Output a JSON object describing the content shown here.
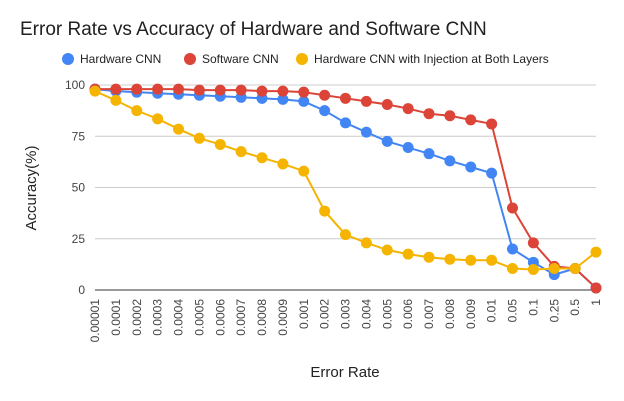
{
  "chart_data": {
    "type": "line",
    "title": "Error Rate vs Accuracy of Hardware and Software CNN",
    "xlabel": "Error Rate",
    "ylabel": "Accuracy(%)",
    "ylim": [
      0,
      100
    ],
    "yticks": [
      "0",
      "25",
      "50",
      "75",
      "100"
    ],
    "grid": true,
    "legend_position": "top",
    "categories": [
      "0.00001",
      "0.0001",
      "0.0002",
      "0.0003",
      "0.0004",
      "0.0005",
      "0.0006",
      "0.0007",
      "0.0008",
      "0.0009",
      "0.001",
      "0.002",
      "0.003",
      "0.004",
      "0.005",
      "0.006",
      "0.007",
      "0.008",
      "0.009",
      "0.01",
      "0.05",
      "0.1",
      "0.25",
      "0.5",
      "1"
    ],
    "series": [
      {
        "name": "Hardware CNN",
        "color": "#4285f4",
        "values": [
          98,
          97,
          96.5,
          96,
          95.5,
          95,
          94.5,
          94,
          93.5,
          93,
          92,
          87.5,
          81.5,
          77,
          72.5,
          69.5,
          66.5,
          63,
          60,
          57,
          20,
          13.5,
          7.5,
          10.5,
          1
        ]
      },
      {
        "name": "Software CNN",
        "color": "#db4437",
        "values": [
          98,
          98,
          98,
          98,
          98,
          97.5,
          97.5,
          97.5,
          97,
          97,
          96.5,
          95,
          93.5,
          92,
          90.5,
          88.5,
          86,
          85,
          83,
          81,
          40,
          23,
          11.5,
          10.5,
          1
        ]
      },
      {
        "name": "Hardware CNN with Injection at Both Layers",
        "color": "#f4b400",
        "values": [
          97,
          92.5,
          87.5,
          83.5,
          78.5,
          74,
          71,
          67.5,
          64.5,
          61.5,
          58,
          38.5,
          27,
          23,
          19.5,
          17.5,
          16,
          15,
          14.5,
          14.5,
          10.5,
          10,
          10.5,
          10.5,
          18.5
        ]
      }
    ]
  }
}
